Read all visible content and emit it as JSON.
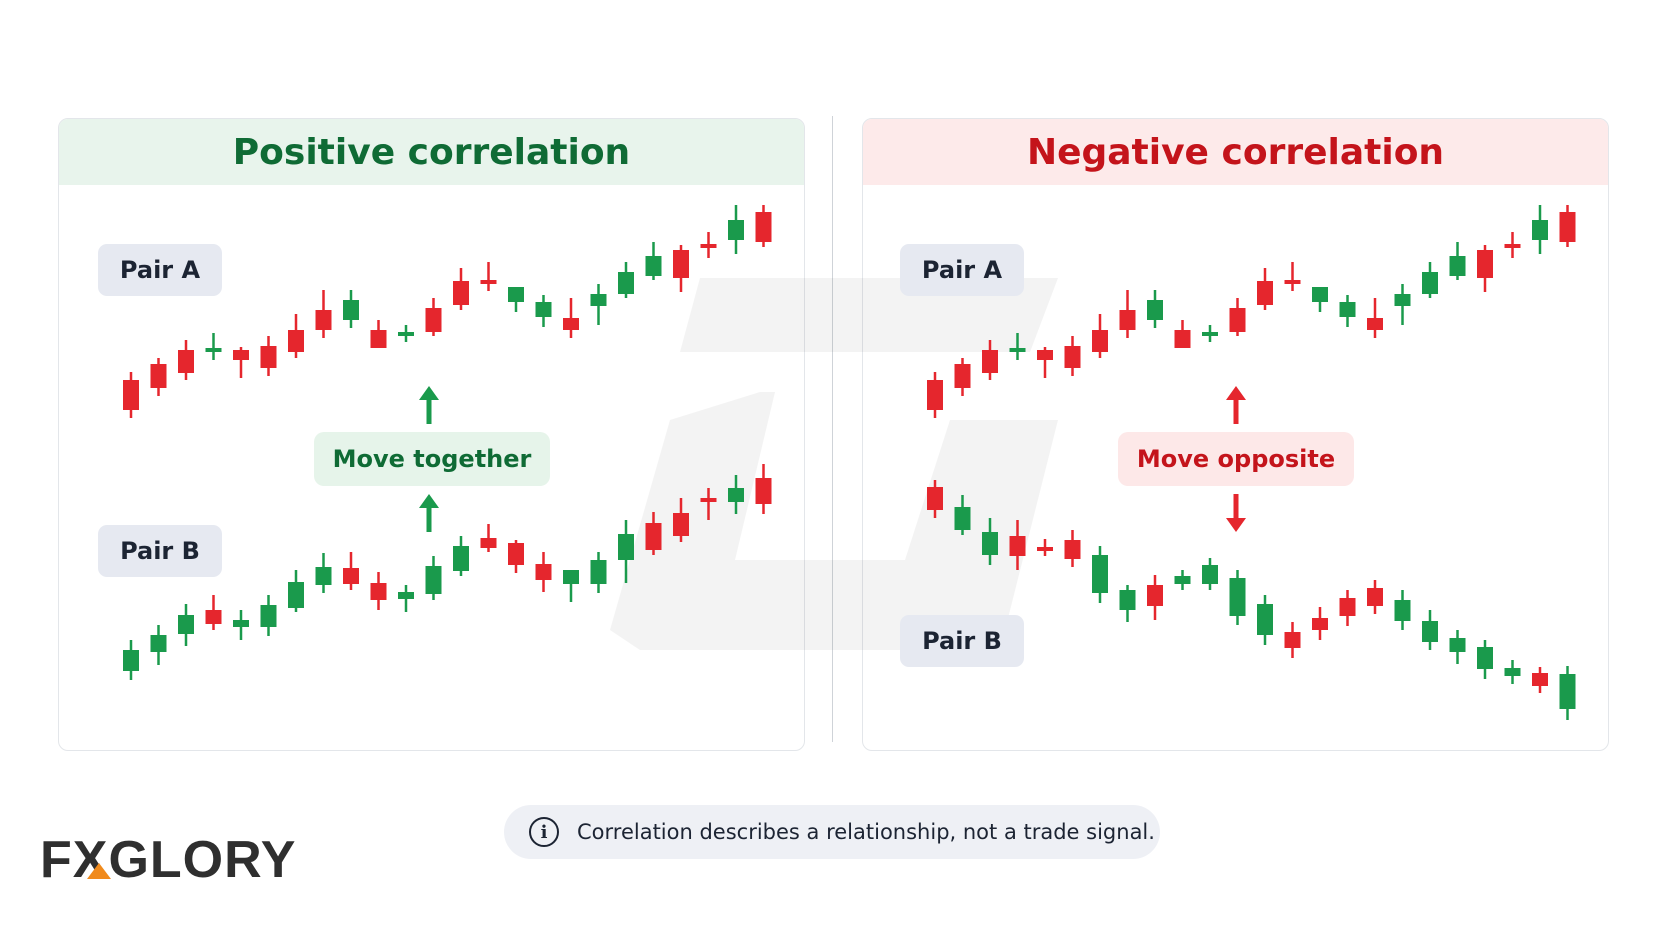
{
  "panels": {
    "left": {
      "title": "Positive correlation",
      "pair_a": "Pair A",
      "pair_b": "Pair B",
      "tag": "Move together"
    },
    "right": {
      "title": "Negative correlation",
      "pair_a": "Pair A",
      "pair_b": "Pair B",
      "tag": "Move opposite"
    }
  },
  "note": "Correlation describes a relationship, not a trade signal.",
  "logo": {
    "text_before": "F",
    "x_letter": "X",
    "text_after": "GLORY"
  },
  "colors": {
    "up": "#1a9a4c",
    "down": "#e5262d",
    "positive_title": "#0f6b35",
    "negative_title": "#c4141b",
    "accent": "#f08a1c"
  },
  "chart_data": [
    {
      "type": "candlestick",
      "title": "Positive correlation",
      "series": [
        {
          "name": "Pair A",
          "values": [
            [
              380,
              410,
              372,
              418
            ],
            [
              364,
              388,
              358,
              396
            ],
            [
              350,
              373,
              340,
              380
            ],
            [
              352,
              348,
              333,
              360
            ],
            [
              350,
              360,
              347,
              378
            ],
            [
              346,
              368,
              336,
              376
            ],
            [
              330,
              352,
              314,
              358
            ],
            [
              310,
              330,
              290,
              338
            ],
            [
              320,
              300,
              290,
              328
            ],
            [
              330,
              348,
              320,
              344
            ],
            [
              336,
              332,
              325,
              342
            ],
            [
              308,
              332,
              298,
              336
            ],
            [
              281,
              305,
              268,
              310
            ],
            [
              282,
              282,
              262,
              291
            ],
            [
              302,
              287,
              290,
              312
            ],
            [
              317,
              302,
              295,
              327
            ],
            [
              318,
              330,
              298,
              338
            ],
            [
              306,
              294,
              284,
              325
            ],
            [
              294,
              272,
              262,
              298
            ],
            [
              276,
              256,
              242,
              280
            ],
            [
              250,
              278,
              245,
              292
            ],
            [
              246,
              246,
              232,
              258
            ],
            [
              240,
              220,
              205,
              254
            ],
            [
              212,
              242,
              205,
              247
            ]
          ]
        },
        {
          "name": "Pair B",
          "values": [
            [
              671,
              650,
              640,
              680
            ],
            [
              652,
              635,
              625,
              665
            ],
            [
              634,
              615,
              604,
              646
            ],
            [
              610,
              624,
              595,
              630
            ],
            [
              627,
              620,
              610,
              640
            ],
            [
              627,
              605,
              595,
              636
            ],
            [
              608,
              582,
              570,
              612
            ],
            [
              585,
              567,
              553,
              593
            ],
            [
              568,
              584,
              552,
              590
            ],
            [
              583,
              600,
              572,
              610
            ],
            [
              599,
              592,
              585,
              612
            ],
            [
              594,
              566,
              556,
              600
            ],
            [
              571,
              546,
              536,
              576
            ],
            [
              538,
              548,
              524,
              552
            ],
            [
              543,
              565,
              540,
              573
            ],
            [
              564,
              580,
              552,
              592
            ],
            [
              584,
              570,
              570,
              602
            ],
            [
              584,
              560,
              552,
              593
            ],
            [
              560,
              534,
              520,
              583
            ],
            [
              523,
              550,
              512,
              555
            ],
            [
              513,
              536,
              498,
              542
            ],
            [
              500,
              500,
              488,
              520
            ],
            [
              502,
              488,
              475,
              514
            ],
            [
              478,
              504,
              464,
              514
            ]
          ]
        }
      ]
    },
    {
      "type": "candlestick",
      "title": "Negative correlation",
      "series": [
        {
          "name": "Pair A",
          "values": [
            [
              380,
              410,
              372,
              418
            ],
            [
              364,
              388,
              358,
              396
            ],
            [
              350,
              373,
              340,
              380
            ],
            [
              352,
              348,
              333,
              360
            ],
            [
              350,
              360,
              347,
              378
            ],
            [
              346,
              368,
              336,
              376
            ],
            [
              330,
              352,
              314,
              358
            ],
            [
              310,
              330,
              290,
              338
            ],
            [
              320,
              300,
              290,
              328
            ],
            [
              330,
              348,
              320,
              344
            ],
            [
              336,
              332,
              325,
              342
            ],
            [
              308,
              332,
              298,
              336
            ],
            [
              281,
              305,
              268,
              310
            ],
            [
              282,
              282,
              262,
              291
            ],
            [
              302,
              287,
              290,
              312
            ],
            [
              317,
              302,
              295,
              327
            ],
            [
              318,
              330,
              298,
              338
            ],
            [
              306,
              294,
              284,
              325
            ],
            [
              294,
              272,
              262,
              298
            ],
            [
              276,
              256,
              242,
              280
            ],
            [
              250,
              278,
              245,
              292
            ],
            [
              246,
              246,
              232,
              258
            ],
            [
              240,
              220,
              205,
              254
            ],
            [
              212,
              242,
              205,
              247
            ]
          ]
        },
        {
          "name": "Pair B",
          "values": [
            [
              487,
              510,
              480,
              518
            ],
            [
              530,
              507,
              495,
              535
            ],
            [
              555,
              532,
              518,
              565
            ],
            [
              536,
              556,
              520,
              570
            ],
            [
              549,
              550,
              539,
              556
            ],
            [
              540,
              559,
              530,
              567
            ],
            [
              593,
              555,
              546,
              603
            ],
            [
              610,
              590,
              585,
              622
            ],
            [
              585,
              606,
              575,
              620
            ],
            [
              584,
              576,
              570,
              590
            ],
            [
              584,
              565,
              558,
              590
            ],
            [
              616,
              578,
              570,
              625
            ],
            [
              635,
              604,
              595,
              645
            ],
            [
              632,
              648,
              622,
              658
            ],
            [
              618,
              630,
              607,
              640
            ],
            [
              598,
              616,
              590,
              626
            ],
            [
              588,
              606,
              580,
              614
            ],
            [
              621,
              600,
              590,
              630
            ],
            [
              642,
              621,
              610,
              650
            ],
            [
              652,
              638,
              630,
              664
            ],
            [
              669,
              647,
              640,
              679
            ],
            [
              676,
              668,
              660,
              684
            ],
            [
              673,
              686,
              667,
              693
            ],
            [
              709,
              674,
              666,
              720
            ]
          ]
        }
      ]
    }
  ]
}
